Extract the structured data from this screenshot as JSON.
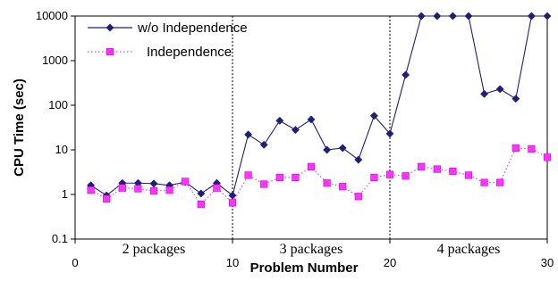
{
  "chart_data": {
    "type": "line",
    "xlabel": "Problem Number",
    "ylabel": "CPU Time (sec)",
    "y_scale": "log",
    "ylim": [
      0.1,
      10000
    ],
    "xlim": [
      0,
      30
    ],
    "x_ticks": [
      "0",
      "10",
      "20",
      "30"
    ],
    "y_ticks": [
      "0.1",
      "1",
      "10",
      "100",
      "1000",
      "10000"
    ],
    "legend_position": "top-left",
    "group_dividers": [
      10,
      20,
      30
    ],
    "group_labels": [
      {
        "label": "2 packages",
        "x": 5
      },
      {
        "label": "3 packages",
        "x": 15
      },
      {
        "label": "4 packages",
        "x": 25
      }
    ],
    "series": [
      {
        "name": "w/o Independence",
        "color": "#1f1f7a",
        "marker": "diamond",
        "line_style": "solid",
        "x": [
          1,
          2,
          3,
          4,
          5,
          6,
          7,
          8,
          9,
          10,
          11,
          12,
          13,
          14,
          15,
          16,
          17,
          18,
          19,
          20,
          21,
          22,
          23,
          24,
          25,
          26,
          27,
          28,
          29,
          30
        ],
        "values": [
          1.6,
          0.95,
          1.8,
          1.8,
          1.75,
          1.6,
          1.9,
          1.05,
          1.8,
          0.95,
          22,
          13,
          45,
          28,
          48,
          10,
          11,
          6,
          58,
          23,
          480,
          10000,
          10000,
          10000,
          10000,
          180,
          230,
          140,
          10000,
          10000
        ]
      },
      {
        "name": "Independence",
        "color": "#ff33ff",
        "marker": "square",
        "line_style": "dotted",
        "x": [
          1,
          2,
          3,
          4,
          5,
          6,
          7,
          8,
          9,
          10,
          11,
          12,
          13,
          14,
          15,
          16,
          17,
          18,
          19,
          20,
          21,
          22,
          23,
          24,
          25,
          26,
          27,
          28,
          29,
          30
        ],
        "values": [
          1.25,
          0.8,
          1.4,
          1.35,
          1.2,
          1.25,
          1.95,
          0.6,
          1.4,
          0.65,
          2.7,
          1.7,
          2.4,
          2.4,
          4.2,
          1.8,
          1.5,
          0.9,
          2.4,
          2.8,
          2.6,
          4.2,
          3.7,
          3.3,
          2.7,
          1.85,
          1.85,
          11,
          10.5,
          6.8
        ]
      }
    ]
  }
}
